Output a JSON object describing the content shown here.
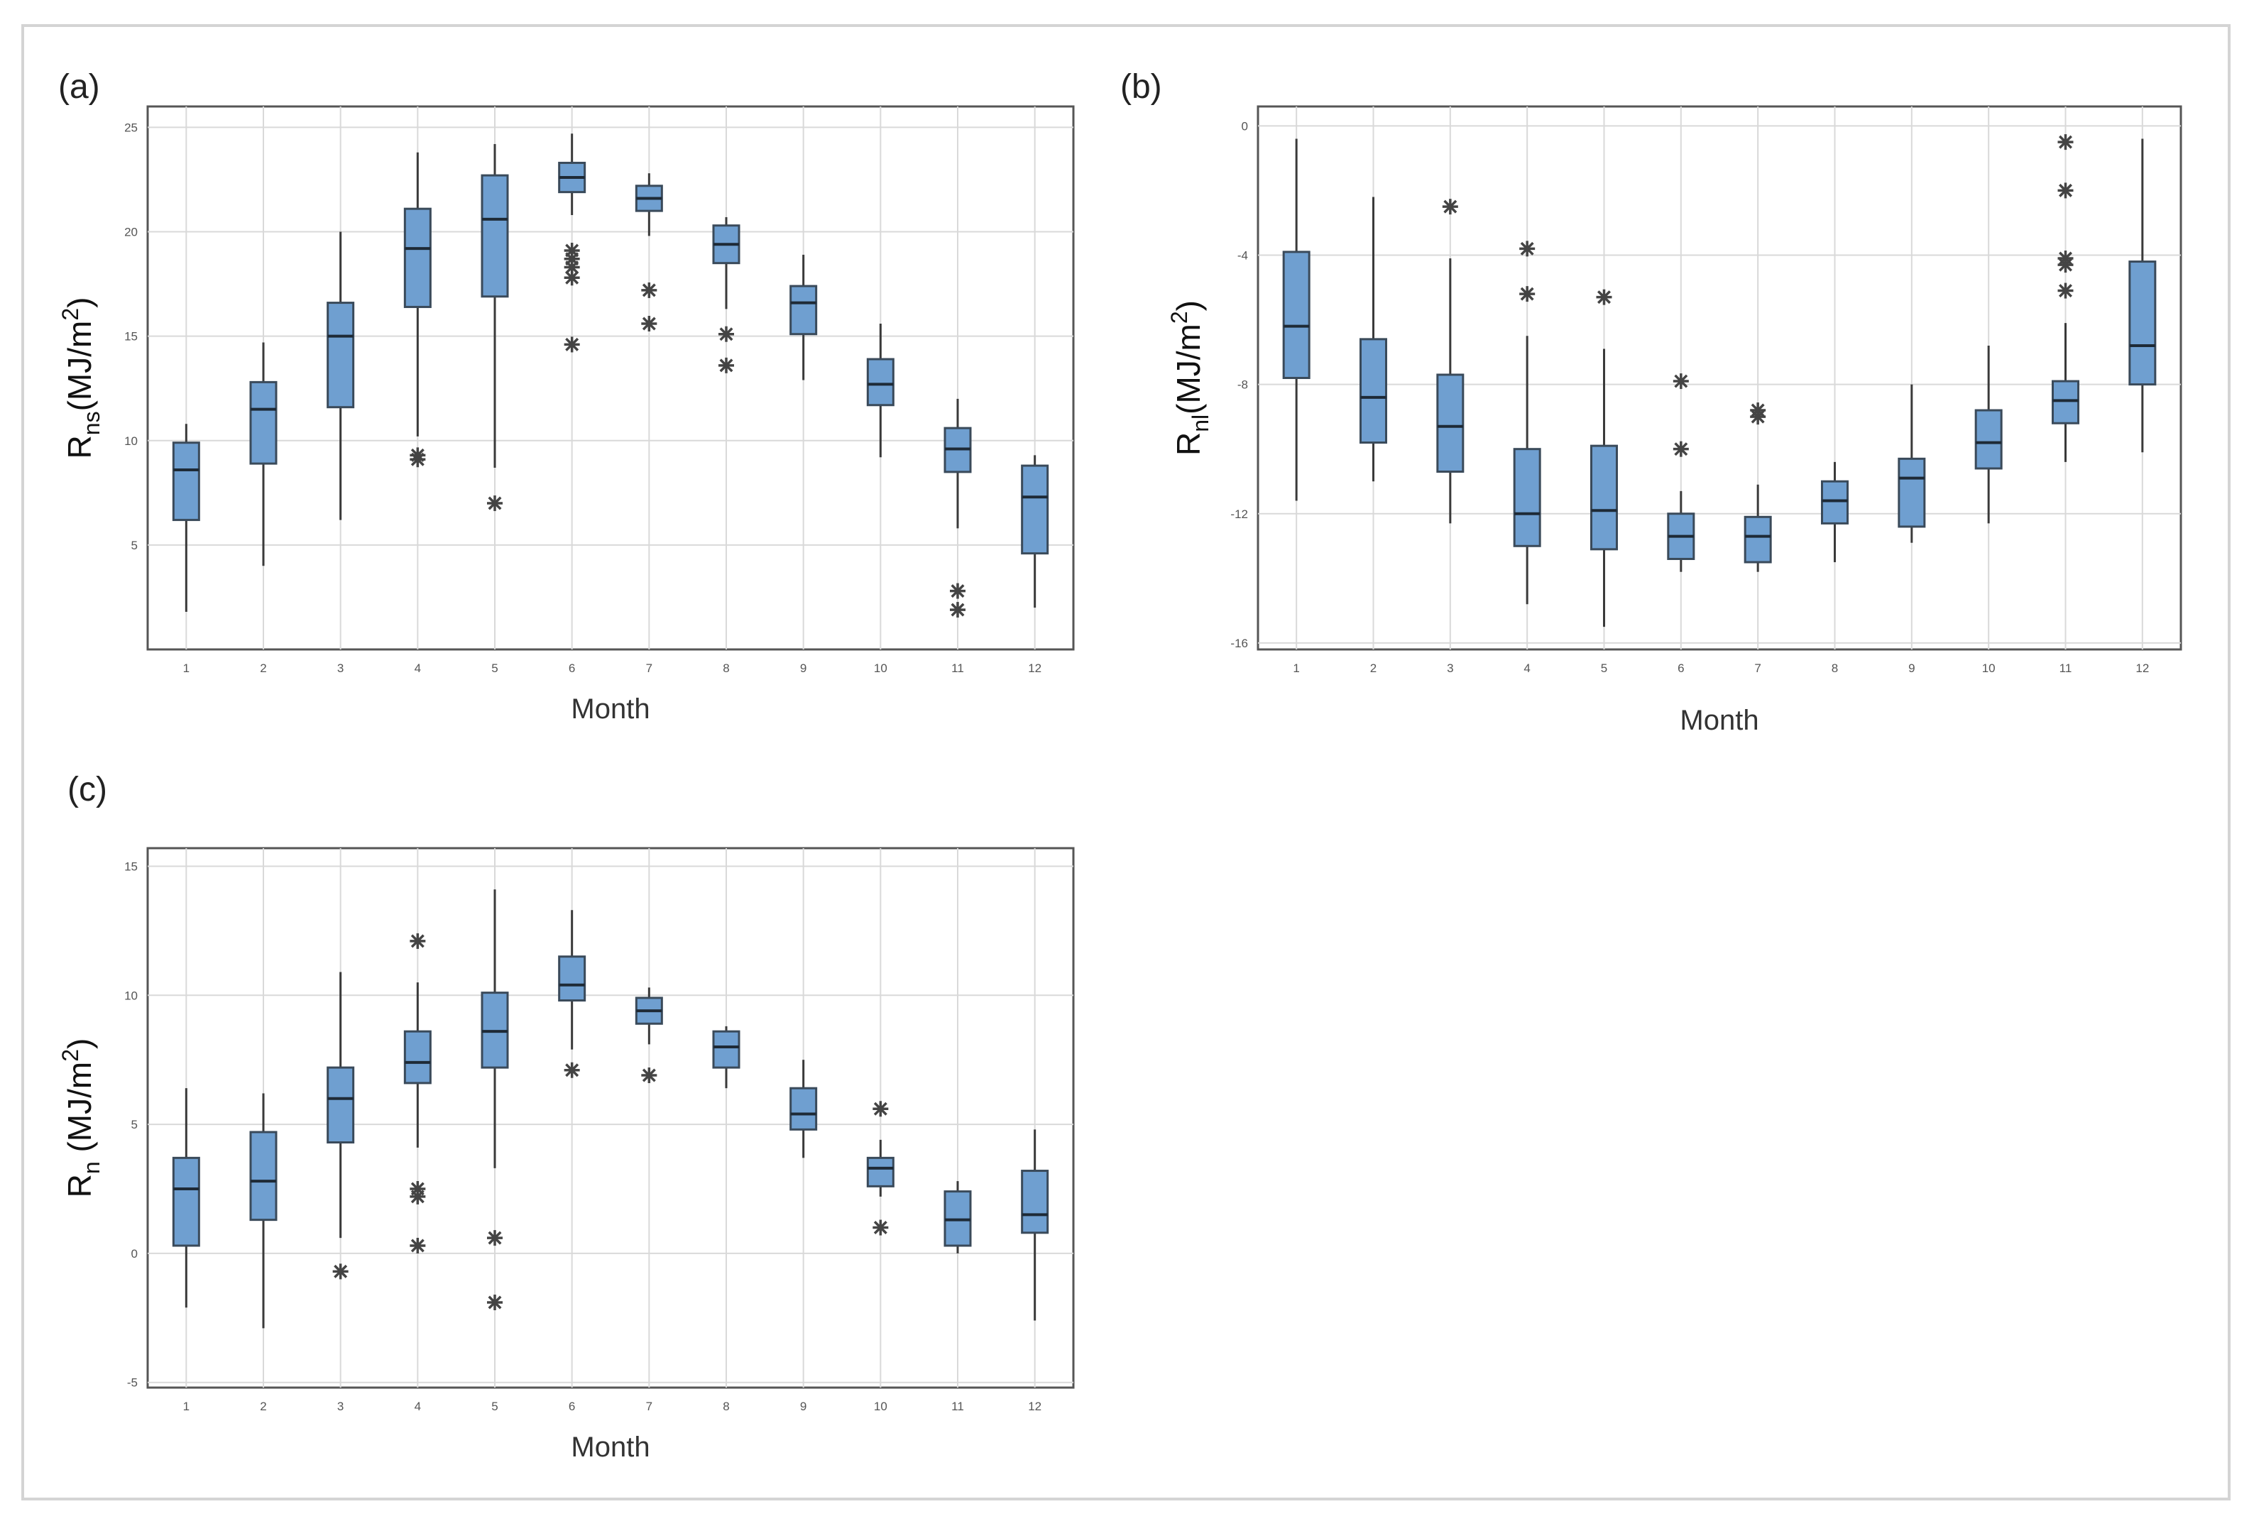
{
  "chart_data": [
    {
      "type": "boxplot",
      "panel_label": "(a)",
      "xlabel": "Month",
      "ylabel": {
        "main": "R",
        "sub": "ns",
        "unit": "(MJ/m",
        "sup": "2",
        "close": ")"
      },
      "ylim": [
        0,
        26
      ],
      "yticks": [
        5,
        10,
        15,
        20,
        25
      ],
      "ytick_labels": [
        "5",
        "10",
        "15",
        "20",
        "25"
      ],
      "categories": [
        "1",
        "2",
        "3",
        "4",
        "5",
        "6",
        "7",
        "8",
        "9",
        "10",
        "11",
        "12"
      ],
      "boxes": [
        {
          "min": 1.8,
          "q1": 6.2,
          "median": 8.6,
          "q3": 9.9,
          "max": 10.8,
          "outliers": []
        },
        {
          "min": 4.0,
          "q1": 8.9,
          "median": 11.5,
          "q3": 12.8,
          "max": 14.7,
          "outliers": []
        },
        {
          "min": 6.2,
          "q1": 11.6,
          "median": 15.0,
          "q3": 16.6,
          "max": 20.0,
          "outliers": []
        },
        {
          "min": 10.2,
          "q1": 16.4,
          "median": 19.2,
          "q3": 21.1,
          "max": 23.8,
          "outliers": [
            9.1,
            9.3
          ]
        },
        {
          "min": 8.7,
          "q1": 16.9,
          "median": 20.6,
          "q3": 22.7,
          "max": 24.2,
          "outliers": [
            7.0
          ]
        },
        {
          "min": 20.8,
          "q1": 21.9,
          "median": 22.6,
          "q3": 23.3,
          "max": 24.7,
          "outliers": [
            19.1,
            18.7,
            18.3,
            17.8,
            14.6
          ]
        },
        {
          "min": 19.8,
          "q1": 21.0,
          "median": 21.6,
          "q3": 22.2,
          "max": 22.8,
          "outliers": [
            17.2,
            15.6
          ]
        },
        {
          "min": 16.3,
          "q1": 18.5,
          "median": 19.4,
          "q3": 20.3,
          "max": 20.7,
          "outliers": [
            15.1,
            13.6
          ]
        },
        {
          "min": 12.9,
          "q1": 15.1,
          "median": 16.6,
          "q3": 17.4,
          "max": 18.9,
          "outliers": []
        },
        {
          "min": 9.2,
          "q1": 11.7,
          "median": 12.7,
          "q3": 13.9,
          "max": 15.6,
          "outliers": []
        },
        {
          "min": 5.8,
          "q1": 8.5,
          "median": 9.6,
          "q3": 10.6,
          "max": 12.0,
          "outliers": [
            2.8,
            1.9
          ]
        },
        {
          "min": 2.0,
          "q1": 4.6,
          "median": 7.3,
          "q3": 8.8,
          "max": 9.3,
          "outliers": []
        }
      ]
    },
    {
      "type": "boxplot",
      "panel_label": "(b)",
      "xlabel": "Month",
      "ylabel": {
        "main": "R",
        "sub": "nl",
        "unit": "(MJ/m",
        "sup": "2",
        "close": ")"
      },
      "ylim": [
        -16.2,
        0.6
      ],
      "yticks": [
        -16,
        -12,
        -8,
        -4,
        0
      ],
      "ytick_labels": [
        "-16",
        "-12",
        "-8",
        "-4",
        "0"
      ],
      "categories": [
        "1",
        "2",
        "3",
        "4",
        "5",
        "6",
        "7",
        "8",
        "9",
        "10",
        "11",
        "12"
      ],
      "boxes": [
        {
          "min": -11.6,
          "q1": -7.8,
          "median": -6.2,
          "q3": -3.9,
          "max": -0.4,
          "outliers": []
        },
        {
          "min": -11.0,
          "q1": -9.8,
          "median": -8.4,
          "q3": -6.6,
          "max": -2.2,
          "outliers": []
        },
        {
          "min": -12.3,
          "q1": -10.7,
          "median": -9.3,
          "q3": -7.7,
          "max": -4.1,
          "outliers": [
            -2.5
          ]
        },
        {
          "min": -14.8,
          "q1": -13.0,
          "median": -12.0,
          "q3": -10.0,
          "max": -6.5,
          "outliers": [
            -3.8,
            -5.2
          ]
        },
        {
          "min": -15.5,
          "q1": -13.1,
          "median": -11.9,
          "q3": -9.9,
          "max": -6.9,
          "outliers": [
            -5.3
          ]
        },
        {
          "min": -13.8,
          "q1": -13.4,
          "median": -12.7,
          "q3": -12.0,
          "max": -11.3,
          "outliers": [
            -7.9,
            -10.0
          ]
        },
        {
          "min": -13.8,
          "q1": -13.5,
          "median": -12.7,
          "q3": -12.1,
          "max": -11.1,
          "outliers": [
            -8.8,
            -9.0
          ]
        },
        {
          "min": -13.5,
          "q1": -12.3,
          "median": -11.6,
          "q3": -11.0,
          "max": -10.4,
          "outliers": []
        },
        {
          "min": -12.9,
          "q1": -12.4,
          "median": -10.9,
          "q3": -10.3,
          "max": -8.0,
          "outliers": []
        },
        {
          "min": -12.3,
          "q1": -10.6,
          "median": -9.8,
          "q3": -8.8,
          "max": -6.8,
          "outliers": []
        },
        {
          "min": -10.4,
          "q1": -9.2,
          "median": -8.5,
          "q3": -7.9,
          "max": -6.1,
          "outliers": [
            -0.5,
            -2.0,
            -4.1,
            -4.3,
            -5.1
          ]
        },
        {
          "min": -10.1,
          "q1": -8.0,
          "median": -6.8,
          "q3": -4.2,
          "max": -0.4,
          "outliers": []
        }
      ]
    },
    {
      "type": "boxplot",
      "panel_label": "(c)",
      "xlabel": "Month",
      "ylabel": {
        "main": "R",
        "sub": "n",
        "unit": " (MJ/m",
        "sup": "2",
        "close": ")"
      },
      "ylim": [
        -5.2,
        15.7
      ],
      "yticks": [
        -5,
        0,
        5,
        10,
        15
      ],
      "ytick_labels": [
        "-5",
        "0",
        "5",
        "10",
        "15"
      ],
      "categories": [
        "1",
        "2",
        "3",
        "4",
        "5",
        "6",
        "7",
        "8",
        "9",
        "10",
        "11",
        "12"
      ],
      "boxes": [
        {
          "min": -2.1,
          "q1": 0.3,
          "median": 2.5,
          "q3": 3.7,
          "max": 6.4,
          "outliers": []
        },
        {
          "min": -2.9,
          "q1": 1.3,
          "median": 2.8,
          "q3": 4.7,
          "max": 6.2,
          "outliers": []
        },
        {
          "min": 0.6,
          "q1": 4.3,
          "median": 6.0,
          "q3": 7.2,
          "max": 10.9,
          "outliers": [
            -0.7
          ]
        },
        {
          "min": 4.1,
          "q1": 6.6,
          "median": 7.4,
          "q3": 8.6,
          "max": 10.5,
          "outliers": [
            12.1,
            2.5,
            2.2,
            0.3
          ]
        },
        {
          "min": 3.3,
          "q1": 7.2,
          "median": 8.6,
          "q3": 10.1,
          "max": 14.1,
          "outliers": [
            0.6,
            -1.9
          ]
        },
        {
          "min": 7.9,
          "q1": 9.8,
          "median": 10.4,
          "q3": 11.5,
          "max": 13.3,
          "outliers": [
            7.1
          ]
        },
        {
          "min": 8.1,
          "q1": 8.9,
          "median": 9.4,
          "q3": 9.9,
          "max": 10.3,
          "outliers": [
            6.9
          ]
        },
        {
          "min": 6.4,
          "q1": 7.2,
          "median": 8.0,
          "q3": 8.6,
          "max": 8.8,
          "outliers": []
        },
        {
          "min": 3.7,
          "q1": 4.8,
          "median": 5.4,
          "q3": 6.4,
          "max": 7.5,
          "outliers": []
        },
        {
          "min": 2.2,
          "q1": 2.6,
          "median": 3.3,
          "q3": 3.7,
          "max": 4.4,
          "outliers": [
            5.6,
            1.0
          ]
        },
        {
          "min": 0.0,
          "q1": 0.3,
          "median": 1.3,
          "q3": 2.4,
          "max": 2.8,
          "outliers": []
        },
        {
          "min": -2.6,
          "q1": 0.8,
          "median": 1.5,
          "q3": 3.2,
          "max": 4.8,
          "outliers": []
        }
      ]
    }
  ]
}
